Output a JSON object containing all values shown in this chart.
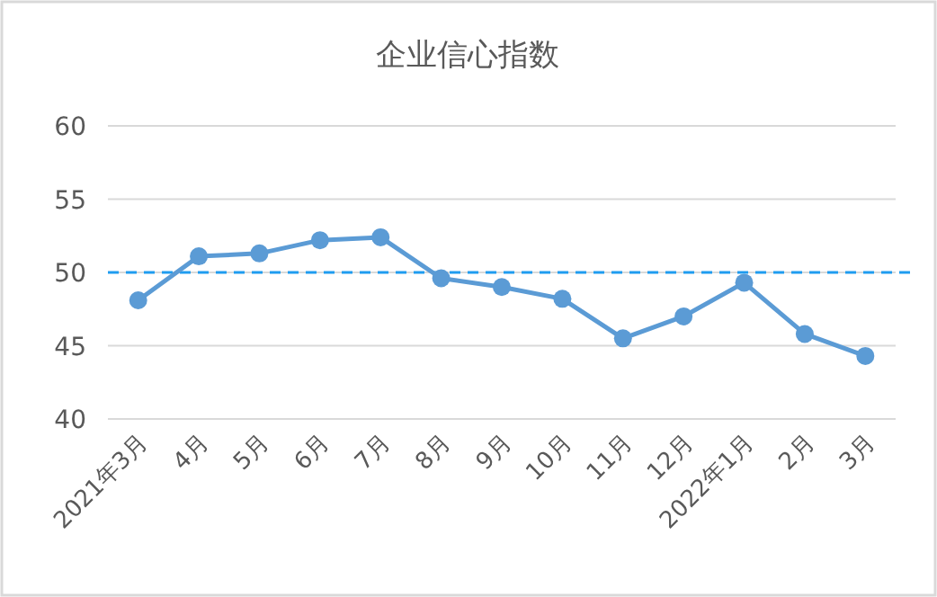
{
  "chart_data": {
    "type": "line",
    "title": "企业信心指数",
    "categories": [
      "2021年3月",
      "4月",
      "5月",
      "6月",
      "7月",
      "8月",
      "9月",
      "10月",
      "11月",
      "12月",
      "2022年1月",
      "2月",
      "3月"
    ],
    "series": [
      {
        "color": "#5b9bd5",
        "values": [
          48.1,
          51.1,
          51.3,
          52.2,
          52.4,
          49.6,
          49.0,
          48.2,
          45.5,
          47.0,
          49.3,
          45.8,
          44.3
        ]
      }
    ],
    "ylim": [
      40,
      60
    ],
    "yticks": [
      40,
      45,
      50,
      55,
      60
    ],
    "grid": "y",
    "marker": "circle",
    "line_style": "solid",
    "ref_lines": [
      {
        "axis": "y",
        "value": 50,
        "color": "#1f9cf0",
        "line_style": "dashed"
      }
    ]
  }
}
